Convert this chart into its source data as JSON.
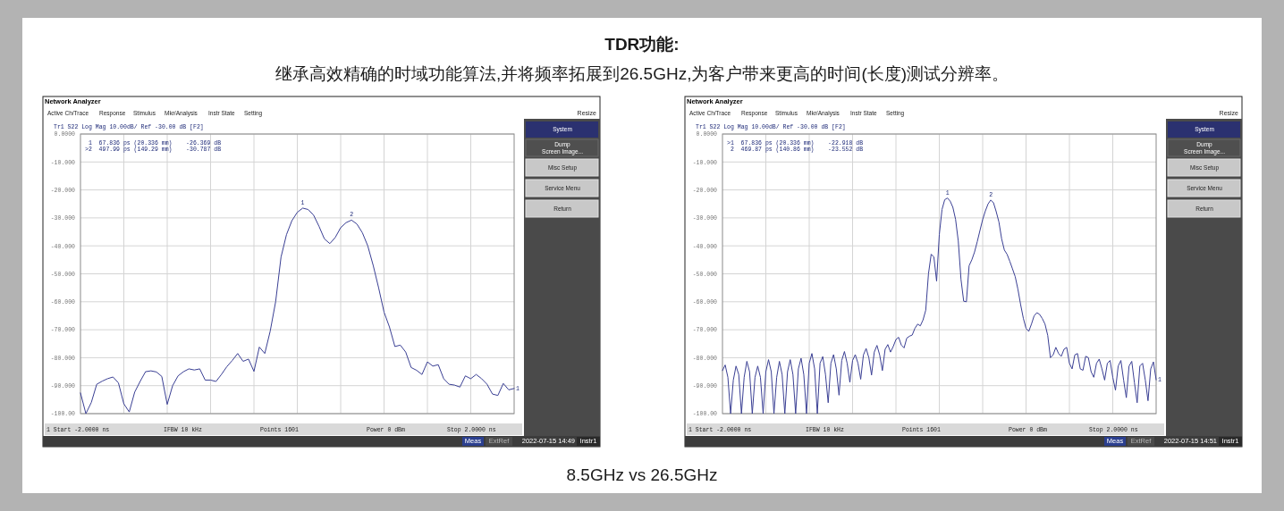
{
  "chart_data": [
    {
      "type": "other",
      "title": "TDR功能:",
      "subtitle": "继承高效精确的时域功能算法,并将频率拓展到26.5GHz,为客户带来更高的时间(长度)测试分辨率。",
      "annotations": [
        "8.5GHz vs 26.5GHz"
      ]
    },
    {
      "type": "line",
      "ylim": [
        -100,
        0
      ],
      "grid": true,
      "tick_labels": "y",
      "yticks": [
        {
          "value": 0,
          "label": "0.0000"
        },
        {
          "value": -10,
          "label": "-10.000"
        },
        {
          "value": -20,
          "label": "-20.000"
        },
        {
          "value": -30,
          "label": "-30.000"
        },
        {
          "value": -40,
          "label": "-40.000"
        },
        {
          "value": -50,
          "label": "-50.000"
        },
        {
          "value": -60,
          "label": "-60.000"
        },
        {
          "value": -70,
          "label": "-70.000"
        },
        {
          "value": -80,
          "label": "-80.000"
        },
        {
          "value": -90,
          "label": "-90.000"
        },
        {
          "value": -100,
          "label": "-100.00"
        }
      ],
      "categories": [
        null,
        null,
        null,
        null,
        null,
        null,
        null,
        null,
        null,
        null,
        null,
        null,
        null,
        null,
        null,
        null,
        null,
        null,
        null,
        null,
        null,
        null,
        null,
        null,
        null,
        null,
        null,
        null,
        null,
        null,
        null,
        null,
        null,
        null,
        null,
        null,
        null,
        null,
        null,
        null,
        null,
        null,
        null,
        null,
        null,
        null,
        null,
        null,
        null,
        null,
        null,
        null,
        null,
        null,
        null,
        null,
        null,
        null,
        null,
        null,
        null,
        null,
        null,
        null,
        null,
        null,
        null,
        null,
        null,
        null,
        null,
        null,
        null,
        null,
        null,
        null,
        null,
        null,
        null,
        null,
        null
      ],
      "series": [
        {
          "color": "#3a3f94",
          "values": [
            -92.6,
            -100,
            -96,
            -89.5,
            -88.4,
            -87.5,
            -86.9,
            -89,
            -96.5,
            -99.4,
            -92.3,
            -88.5,
            -85,
            -84.7,
            -85.1,
            -86.7,
            -96.7,
            -90,
            -86.5,
            -85,
            -84.0,
            -84.4,
            -84.0,
            -88,
            -88,
            -88.5,
            -86,
            -83.2,
            -81,
            -78.5,
            -81.3,
            -80.5,
            -84.9,
            -76.2,
            -78.5,
            -70.5,
            -60,
            -44,
            -36,
            -31,
            -28,
            -26.5,
            -27,
            -29,
            -33,
            -37.5,
            -39.2,
            -37,
            -33.5,
            -31.7,
            -30.8,
            -32.2,
            -35.3,
            -40,
            -47,
            -55,
            -63.7,
            -69,
            -76,
            -75.5,
            -78,
            -83.5,
            -84.5,
            -86,
            -81.5,
            -83,
            -82.5,
            -87.5,
            -89.5,
            -89.8,
            -90.5,
            -86.5,
            -87.5,
            -86,
            -87.5,
            -89.5,
            -93,
            -93.5,
            -89.2,
            -91.5,
            -91.0
          ]
        }
      ],
      "annotations": [
        "Network Analyzer",
        "Active Ch/Trace",
        "Response",
        "Stimulus",
        "Mkr/Analysis",
        "Instr State",
        "Setting",
        "Resize",
        "Tr1 S22 Log Mag 10.00dB/ Ref -30.00 dB [F2]",
        " 1  67.836 ps (20.336 mm)    -26.369 dB",
        ">2  497.99 ps (149.29 mm)    -30.787 dB",
        "1 Start -2.0000 ns",
        "IFBW 10 kHz",
        "Points 1601",
        "Power 0 dBm",
        "Stop 2.0000 ns",
        "Meas",
        "ExtRef",
        "2022-07-15 14:49",
        "Instr1",
        "System",
        "Dump",
        "Screen Image...",
        "Misc Setup",
        "Service Menu",
        "Return",
        {
          "text": "1",
          "y": -26.369
        },
        {
          "text": "2",
          "y": -30.787
        },
        {
          "text": "1",
          "y": -91.0
        }
      ]
    },
    {
      "type": "line",
      "ylim": [
        -100,
        0
      ],
      "grid": true,
      "tick_labels": "y",
      "yticks": [
        {
          "value": 0,
          "label": "0.0000"
        },
        {
          "value": -10,
          "label": "-10.000"
        },
        {
          "value": -20,
          "label": "-20.000"
        },
        {
          "value": -30,
          "label": "-30.000"
        },
        {
          "value": -40,
          "label": "-40.000"
        },
        {
          "value": -50,
          "label": "-50.000"
        },
        {
          "value": -60,
          "label": "-60.000"
        },
        {
          "value": -70,
          "label": "-70.000"
        },
        {
          "value": -80,
          "label": "-80.000"
        },
        {
          "value": -90,
          "label": "-90.000"
        },
        {
          "value": -100,
          "label": "-100.00"
        }
      ],
      "categories": [
        null,
        null,
        null,
        null,
        null,
        null,
        null,
        null,
        null,
        null,
        null,
        null,
        null,
        null,
        null,
        null,
        null,
        null,
        null,
        null,
        null,
        null,
        null,
        null,
        null,
        null,
        null,
        null,
        null,
        null,
        null,
        null,
        null,
        null,
        null,
        null,
        null,
        null,
        null,
        null,
        null,
        null,
        null,
        null,
        null,
        null,
        null,
        null,
        null,
        null,
        null,
        null,
        null,
        null,
        null,
        null,
        null,
        null,
        null,
        null,
        null,
        null,
        null,
        null,
        null,
        null,
        null,
        null,
        null,
        null,
        null,
        null,
        null,
        null,
        null,
        null,
        null,
        null,
        null,
        null,
        null,
        null,
        null,
        null,
        null,
        null,
        null,
        null,
        null,
        null,
        null,
        null,
        null,
        null,
        null,
        null,
        null,
        null,
        null,
        null,
        null,
        null,
        null,
        null,
        null,
        null,
        null,
        null,
        null,
        null,
        null,
        null,
        null,
        null,
        null,
        null,
        null,
        null,
        null,
        null,
        null,
        null,
        null,
        null,
        null,
        null,
        null,
        null,
        null,
        null,
        null,
        null,
        null,
        null,
        null,
        null,
        null,
        null,
        null,
        null,
        null,
        null,
        null,
        null,
        null,
        null,
        null,
        null,
        null,
        null,
        null,
        null,
        null,
        null,
        null,
        null,
        null,
        null,
        null,
        null,
        null
      ],
      "series": [
        {
          "color": "#3a3f94",
          "values": [
            -84.6,
            -82.6,
            -87,
            -100,
            -88,
            -83.0,
            -86,
            -100,
            -87,
            -81.3,
            -85,
            -100,
            -87,
            -83.0,
            -87,
            -100,
            -85,
            -80.7,
            -85,
            -100,
            -87,
            -81.3,
            -86,
            -100,
            -85,
            -80.7,
            -86,
            -100,
            -84,
            -80.2,
            -86,
            -100,
            -82,
            -78.5,
            -84,
            -100,
            -82,
            -79.6,
            -86,
            -96.1,
            -82,
            -78.9,
            -84,
            -93.4,
            -81,
            -77.8,
            -82,
            -88.8,
            -81,
            -78.9,
            -82,
            -87.7,
            -79,
            -76.7,
            -80,
            -86.2,
            -78,
            -75.6,
            -79,
            -84.6,
            -77,
            -75.3,
            -78,
            -76,
            -73.5,
            -72.7,
            -75.5,
            -76.5,
            -73,
            -72.3,
            -71.9,
            -69.5,
            -68,
            -68.6,
            -66.5,
            -63,
            -50,
            -43,
            -44,
            -52.6,
            -36,
            -27,
            -23.5,
            -22.9,
            -24,
            -26.2,
            -30.5,
            -38.3,
            -52,
            -59.8,
            -60,
            -47.1,
            -45,
            -42.2,
            -38.5,
            -34.5,
            -30.6,
            -27.5,
            -25,
            -23.6,
            -24.6,
            -27.8,
            -31.5,
            -37.5,
            -41.5,
            -43,
            -45.5,
            -48.2,
            -51.0,
            -55.5,
            -61,
            -65.9,
            -69.5,
            -70.6,
            -68,
            -65,
            -63.9,
            -64.5,
            -66,
            -68,
            -72,
            -80,
            -79,
            -76.3,
            -78.5,
            -79.5,
            -77,
            -76.3,
            -82,
            -84,
            -79,
            -78.5,
            -84,
            -84.5,
            -79.5,
            -80,
            -85,
            -87,
            -82,
            -80.5,
            -84,
            -88,
            -82,
            -81,
            -87,
            -91.6,
            -83,
            -81,
            -88,
            -94.3,
            -83,
            -81.3,
            -89,
            -96.1,
            -83,
            -82,
            -88,
            -95.4,
            -84,
            -81.5,
            -87.9
          ]
        }
      ],
      "annotations": [
        "Network Analyzer",
        "Active Ch/Trace",
        "Response",
        "Stimulus",
        "Mkr/Analysis",
        "Instr State",
        "Setting",
        "Resize",
        "Tr1 S22 Log Mag 10.00dB/ Ref -30.00 dB [F2]",
        ">1  67.836 ps (20.336 mm)    -22.918 dB",
        " 2  469.87 ps (140.86 mm)    -23.552 dB",
        "1 Start -2.0000 ns",
        "IFBW 10 kHz",
        "Points 1601",
        "Power 0 dBm",
        "Stop 2.0000 ns",
        "Meas",
        "ExtRef",
        "2022-07-15 14:51",
        "Instr1",
        "System",
        "Dump",
        "Screen Image...",
        "Misc Setup",
        "Service Menu",
        "Return",
        {
          "text": "1",
          "y": -22.918
        },
        {
          "text": "2",
          "y": -23.552
        },
        {
          "text": "1",
          "y": -87.9
        }
      ]
    }
  ]
}
